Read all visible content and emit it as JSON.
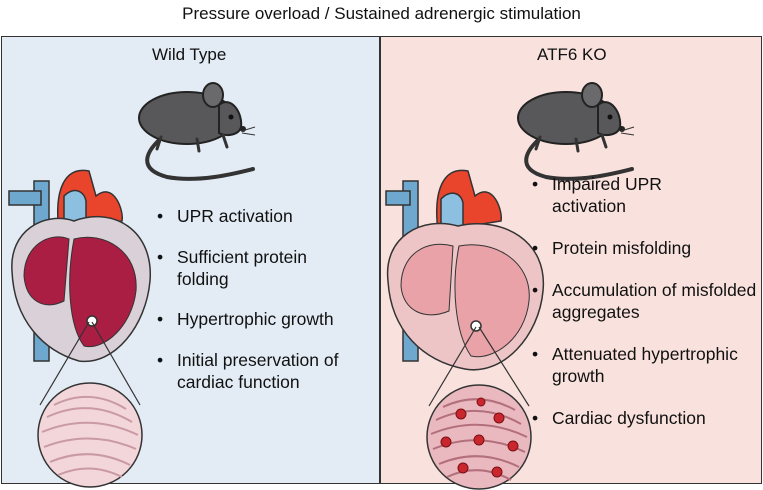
{
  "title": "Pressure overload / Sustained adrenergic stimulation",
  "panels": [
    {
      "heading": "Wild Type",
      "bullets": [
        "UPR activation",
        "Sufficient protein folding",
        "Hypertrophic growth",
        "Initial preservation of cardiac function"
      ]
    },
    {
      "heading": "ATF6 KO",
      "bullets": [
        "Impaired UPR activation",
        "Protein misfolding",
        "Accumulation of misfolded aggregates",
        "Attenuated hypertrophic growth",
        "Cardiac dysfunction"
      ]
    }
  ],
  "colors": {
    "wild_type_background": "#e3ecf5",
    "atf6_ko_background": "#f9e2dd",
    "aorta": "#e8452c",
    "vena_cava": "#6fa8cf",
    "wild_type_myocardium": "#a91e42",
    "atf6_ko_myocardium": "#e8a2a8",
    "aggregates": "#c9262e"
  },
  "icons": [
    "mouse-icon",
    "heart-icon",
    "tissue-magnifier-icon"
  ]
}
